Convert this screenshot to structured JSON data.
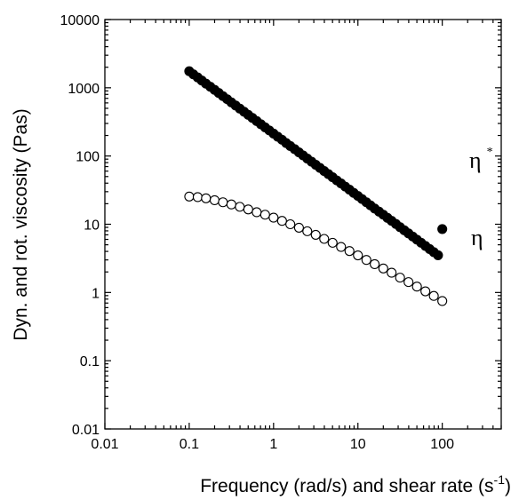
{
  "chart_data": {
    "type": "scatter",
    "xlabel": "Frequency (rad/s) and shear rate (s",
    "xlabel_sup": "-1",
    "xlabel_end": ")",
    "ylabel": "Dyn. and rot. viscosity (Pas)",
    "x_scale": "log",
    "y_scale": "log",
    "xlim": [
      0.01,
      500
    ],
    "ylim": [
      0.01,
      10000
    ],
    "x_tick_labels": [
      "0.01",
      "0.1",
      "1",
      "10",
      "100"
    ],
    "y_tick_labels": [
      "0.01",
      "0.1",
      "1",
      "10",
      "100",
      "1000",
      "10000"
    ],
    "grid": false,
    "series": [
      {
        "name": "η",
        "name_sup": "*",
        "marker": "filled-circle",
        "color": "#000000",
        "x": [
          0.1,
          0.112,
          0.126,
          0.141,
          0.158,
          0.178,
          0.2,
          0.224,
          0.251,
          0.282,
          0.316,
          0.355,
          0.398,
          0.447,
          0.501,
          0.562,
          0.631,
          0.708,
          0.794,
          0.891,
          1.0,
          1.12,
          1.26,
          1.41,
          1.58,
          1.78,
          2.0,
          2.24,
          2.51,
          2.82,
          3.16,
          3.55,
          3.98,
          4.47,
          5.01,
          5.62,
          6.31,
          7.08,
          7.94,
          8.91,
          10.0,
          11.2,
          12.6,
          14.1,
          15.8,
          17.8,
          20.0,
          22.4,
          25.1,
          28.2,
          31.6,
          35.5,
          39.8,
          44.7,
          50.1,
          56.2,
          63.1,
          70.8,
          79.4,
          89.1,
          100.0
        ],
        "y": [
          1750,
          1575,
          1418,
          1276,
          1149,
          1034,
          931,
          838,
          754,
          679,
          611,
          550,
          495,
          446,
          401,
          361,
          325,
          292,
          263,
          237,
          213,
          192,
          173,
          155,
          140,
          126,
          113,
          102,
          91.8,
          82.6,
          74.4,
          66.9,
          60.3,
          54.2,
          48.8,
          43.9,
          39.6,
          35.6,
          32.1,
          28.8,
          26.0,
          23.4,
          21.0,
          18.9,
          17.0,
          15.3,
          13.8,
          12.4,
          11.2,
          10.1,
          9.06,
          8.15,
          7.34,
          6.6,
          5.94,
          5.35,
          4.81,
          4.33,
          3.9,
          3.51,
          8.5
        ]
      },
      {
        "name": "η",
        "marker": "open-circle",
        "color": "#000000",
        "x": [
          0.1,
          0.126,
          0.158,
          0.2,
          0.251,
          0.316,
          0.398,
          0.501,
          0.631,
          0.794,
          1.0,
          1.26,
          1.58,
          2.0,
          2.51,
          3.16,
          3.98,
          5.01,
          6.31,
          7.94,
          10.0,
          12.6,
          15.8,
          20.0,
          25.1,
          31.6,
          39.8,
          50.1,
          63.1,
          79.4,
          100.0
        ],
        "y": [
          25.5,
          25.0,
          24.0,
          22.5,
          21.0,
          19.5,
          18.0,
          16.5,
          15.0,
          13.8,
          12.5,
          11.2,
          10.0,
          8.9,
          7.9,
          7.0,
          6.1,
          5.35,
          4.65,
          4.05,
          3.5,
          3.0,
          2.6,
          2.25,
          1.95,
          1.65,
          1.42,
          1.22,
          1.04,
          0.89,
          0.75
        ]
      }
    ]
  }
}
